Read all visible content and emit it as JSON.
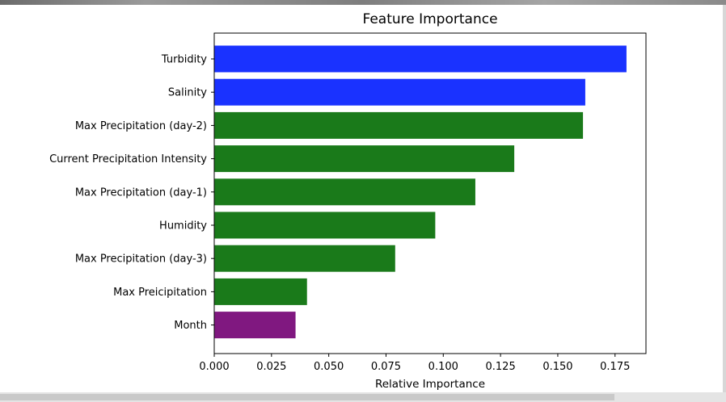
{
  "chart_data": {
    "type": "bar",
    "orientation": "horizontal",
    "title": "Feature Importance",
    "xlabel": "Relative Importance",
    "ylabel": "",
    "xlim": [
      0,
      0.1885
    ],
    "xticks": [
      0.0,
      0.025,
      0.05,
      0.075,
      0.1,
      0.125,
      0.15,
      0.175
    ],
    "xtick_labels": [
      "0.000",
      "0.025",
      "0.050",
      "0.075",
      "0.100",
      "0.125",
      "0.150",
      "0.175"
    ],
    "grid": false,
    "categories": [
      "Turbidity",
      "Salinity",
      "Max Precipitation (day-2)",
      "Current Precipitation Intensity",
      "Max Precipitation (day-1)",
      "Humidity",
      "Max Precipitation (day-3)",
      "Max Preicipitation",
      "Month"
    ],
    "values": [
      0.18,
      0.162,
      0.161,
      0.131,
      0.114,
      0.0965,
      0.079,
      0.0405,
      0.0355
    ],
    "colors": [
      "#1a32ff",
      "#1a32ff",
      "#1a7a1a",
      "#1a7a1a",
      "#1a7a1a",
      "#1a7a1a",
      "#1a7a1a",
      "#1a7a1a",
      "#801880"
    ]
  }
}
